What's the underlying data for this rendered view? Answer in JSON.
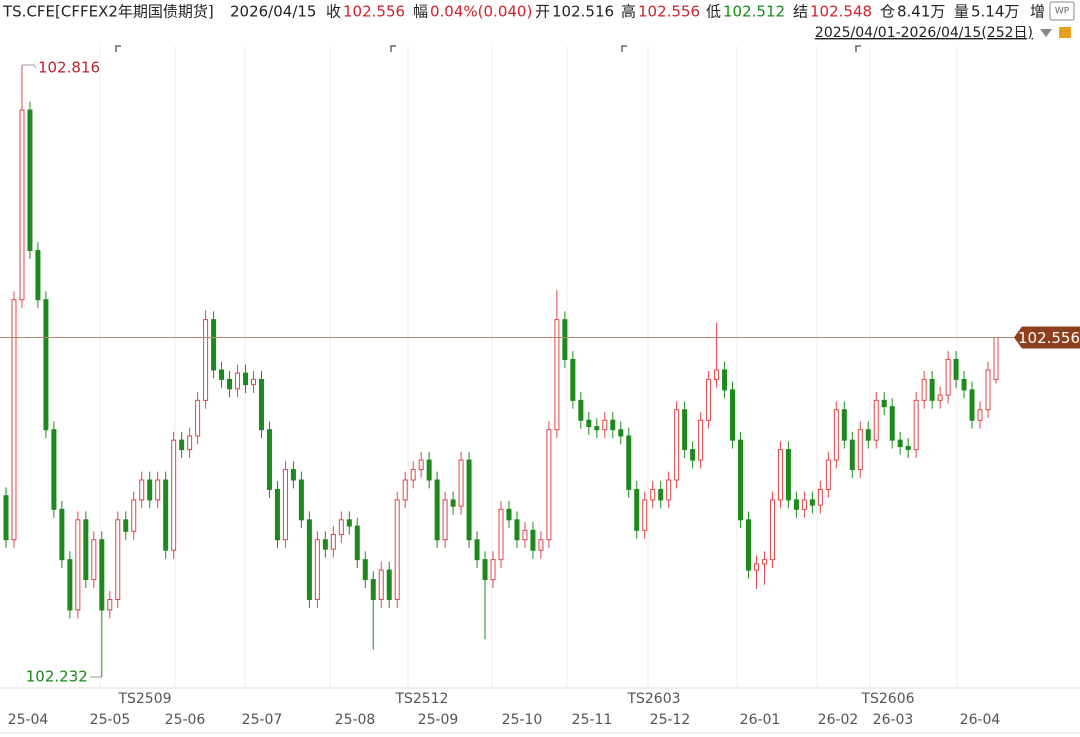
{
  "header": {
    "symbol": "TS.CFE[CFFEX2年期国债期货]",
    "date": "2026/04/15",
    "fields": [
      {
        "label": "收",
        "value": "102.556",
        "color": "#d0222a"
      },
      {
        "label": "幅",
        "value": "0.04%(0.040)",
        "color": "#d0222a"
      },
      {
        "label": "开",
        "value": "102.516",
        "color": "#222222"
      },
      {
        "label": "高",
        "value": "102.556",
        "color": "#d0222a"
      },
      {
        "label": "低",
        "value": "102.512",
        "color": "#178a17"
      },
      {
        "label": "结",
        "value": "102.548",
        "color": "#d0222a"
      },
      {
        "label": "仓",
        "value": "8.41万",
        "color": "#222222"
      },
      {
        "label": "量",
        "value": "5.14万",
        "color": "#222222"
      }
    ],
    "extra": "增",
    "range": "2025/04/01-2026/04/15(252日)"
  },
  "chart_data": {
    "type": "candlestick",
    "open": [
      102.405,
      102.363,
      102.592,
      102.773,
      102.639,
      102.592,
      102.468,
      102.392,
      102.344,
      102.296,
      102.382,
      102.325,
      102.363,
      102.296,
      102.306,
      102.382,
      102.371,
      102.401,
      102.42,
      102.401,
      102.42,
      102.353,
      102.458,
      102.449,
      102.462,
      102.496,
      102.573,
      102.525,
      102.516,
      102.507,
      102.522,
      102.511,
      102.516,
      102.468,
      102.411,
      102.363,
      102.43,
      102.42,
      102.382,
      102.306,
      102.363,
      102.354,
      102.368,
      102.382,
      102.376,
      102.344,
      102.325,
      102.306,
      102.334,
      102.306,
      102.401,
      102.42,
      102.43,
      102.439,
      102.42,
      102.363,
      102.401,
      102.395,
      102.439,
      102.363,
      102.344,
      102.325,
      102.344,
      102.392,
      102.382,
      102.363,
      102.372,
      102.353,
      102.363,
      102.468,
      102.573,
      102.535,
      102.496,
      102.477,
      102.471,
      102.468,
      102.477,
      102.468,
      102.462,
      102.411,
      102.372,
      102.401,
      102.411,
      102.401,
      102.42,
      102.487,
      102.449,
      102.439,
      102.477,
      102.516,
      102.525,
      102.506,
      102.458,
      102.382,
      102.334,
      102.34,
      102.344,
      102.401,
      102.449,
      102.401,
      102.392,
      102.401,
      102.396,
      102.411,
      102.439,
      102.487,
      102.458,
      102.43,
      102.468,
      102.458,
      102.496,
      102.49,
      102.458,
      102.452,
      102.449,
      102.496,
      102.516,
      102.496,
      102.501,
      102.535,
      102.516,
      102.506,
      102.477,
      102.487,
      102.516
    ],
    "high": [
      102.413,
      102.6,
      102.816,
      102.781,
      102.647,
      102.6,
      102.476,
      102.4,
      102.352,
      102.39,
      102.39,
      102.371,
      102.371,
      102.314,
      102.39,
      102.39,
      102.409,
      102.428,
      102.428,
      102.428,
      102.428,
      102.466,
      102.466,
      102.47,
      102.504,
      102.582,
      102.581,
      102.533,
      102.524,
      102.53,
      102.53,
      102.524,
      102.524,
      102.476,
      102.419,
      102.438,
      102.438,
      102.428,
      102.39,
      102.371,
      102.371,
      102.376,
      102.39,
      102.39,
      102.384,
      102.352,
      102.333,
      102.342,
      102.342,
      102.409,
      102.428,
      102.438,
      102.447,
      102.447,
      102.428,
      102.409,
      102.409,
      102.447,
      102.447,
      102.371,
      102.352,
      102.352,
      102.4,
      102.4,
      102.39,
      102.38,
      102.38,
      102.371,
      102.476,
      102.601,
      102.581,
      102.543,
      102.504,
      102.485,
      102.479,
      102.485,
      102.485,
      102.476,
      102.47,
      102.419,
      102.409,
      102.419,
      102.419,
      102.428,
      102.495,
      102.495,
      102.457,
      102.485,
      102.524,
      102.57,
      102.533,
      102.514,
      102.466,
      102.39,
      102.348,
      102.352,
      102.409,
      102.457,
      102.457,
      102.409,
      102.409,
      102.409,
      102.419,
      102.447,
      102.495,
      102.495,
      102.466,
      102.476,
      102.476,
      102.504,
      102.504,
      102.498,
      102.466,
      102.46,
      102.504,
      102.524,
      102.524,
      102.509,
      102.543,
      102.543,
      102.524,
      102.514,
      102.495,
      102.533,
      102.556
    ],
    "low": [
      102.355,
      102.355,
      102.584,
      102.631,
      102.584,
      102.46,
      102.384,
      102.336,
      102.288,
      102.288,
      102.317,
      102.317,
      102.232,
      102.288,
      102.298,
      102.363,
      102.363,
      102.393,
      102.393,
      102.393,
      102.345,
      102.345,
      102.441,
      102.441,
      102.454,
      102.488,
      102.517,
      102.508,
      102.499,
      102.499,
      102.503,
      102.503,
      102.46,
      102.403,
      102.355,
      102.355,
      102.412,
      102.374,
      102.298,
      102.298,
      102.346,
      102.346,
      102.36,
      102.368,
      102.336,
      102.317,
      102.258,
      102.298,
      102.298,
      102.298,
      102.393,
      102.412,
      102.422,
      102.412,
      102.355,
      102.355,
      102.387,
      102.387,
      102.355,
      102.336,
      102.268,
      102.317,
      102.336,
      102.374,
      102.355,
      102.355,
      102.345,
      102.345,
      102.355,
      102.46,
      102.527,
      102.488,
      102.469,
      102.463,
      102.46,
      102.46,
      102.46,
      102.454,
      102.403,
      102.364,
      102.364,
      102.393,
      102.393,
      102.393,
      102.412,
      102.441,
      102.431,
      102.431,
      102.469,
      102.508,
      102.498,
      102.45,
      102.374,
      102.326,
      102.316,
      102.32,
      102.336,
      102.393,
      102.393,
      102.384,
      102.384,
      102.388,
      102.388,
      102.403,
      102.431,
      102.45,
      102.422,
      102.422,
      102.45,
      102.45,
      102.482,
      102.45,
      102.444,
      102.441,
      102.441,
      102.488,
      102.488,
      102.488,
      102.493,
      102.508,
      102.498,
      102.469,
      102.469,
      102.479,
      102.512
    ],
    "close": [
      102.363,
      102.592,
      102.773,
      102.639,
      102.592,
      102.468,
      102.392,
      102.344,
      102.296,
      102.382,
      102.325,
      102.363,
      102.296,
      102.306,
      102.382,
      102.371,
      102.401,
      102.42,
      102.401,
      102.42,
      102.353,
      102.458,
      102.449,
      102.462,
      102.496,
      102.573,
      102.525,
      102.516,
      102.507,
      102.522,
      102.511,
      102.516,
      102.468,
      102.411,
      102.363,
      102.43,
      102.42,
      102.382,
      102.306,
      102.363,
      102.354,
      102.368,
      102.382,
      102.376,
      102.344,
      102.325,
      102.306,
      102.334,
      102.306,
      102.401,
      102.42,
      102.43,
      102.439,
      102.42,
      102.363,
      102.401,
      102.395,
      102.439,
      102.363,
      102.344,
      102.325,
      102.344,
      102.392,
      102.382,
      102.363,
      102.372,
      102.353,
      102.363,
      102.468,
      102.573,
      102.535,
      102.496,
      102.477,
      102.471,
      102.468,
      102.477,
      102.468,
      102.462,
      102.411,
      102.372,
      102.401,
      102.411,
      102.401,
      102.42,
      102.487,
      102.449,
      102.439,
      102.477,
      102.516,
      102.525,
      102.506,
      102.458,
      102.382,
      102.334,
      102.34,
      102.344,
      102.401,
      102.449,
      102.401,
      102.392,
      102.401,
      102.396,
      102.411,
      102.439,
      102.487,
      102.458,
      102.43,
      102.468,
      102.458,
      102.496,
      102.49,
      102.458,
      102.452,
      102.449,
      102.496,
      102.516,
      102.496,
      102.501,
      102.535,
      102.516,
      102.506,
      102.477,
      102.487,
      102.525,
      102.556
    ],
    "x_labels": [
      "25-04",
      "25-05",
      "25-06",
      "25-07",
      "25-08",
      "25-09",
      "25-10",
      "25-11",
      "25-12",
      "26-01",
      "26-02",
      "26-03",
      "26-04"
    ],
    "contracts": [
      "TS2509",
      "TS2512",
      "TS2603",
      "TS2606"
    ],
    "ylim": [
      102.191,
      102.878
    ],
    "up_color": "#e0464a",
    "down_color": "#1e8a1e",
    "last_line_color": "#b5896c",
    "last_label_color": "#8e3f1c"
  }
}
